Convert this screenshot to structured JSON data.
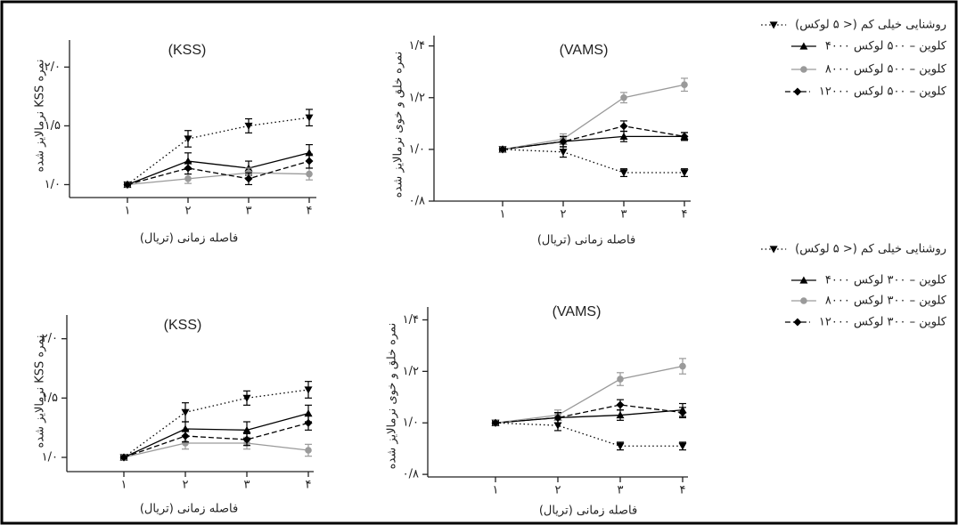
{
  "chart_data": [
    {
      "type": "line",
      "title": "(KSS)",
      "y_label": "نمره KSS نرمالایز شده",
      "x_label": "فاصله زمانی (تریال)",
      "categories": [
        "۱",
        "۲",
        "۳",
        "۴"
      ],
      "ylim": [
        0.89,
        2.23
      ],
      "yticks": [
        {
          "value": 1.0,
          "label": "۱/۰"
        },
        {
          "value": 1.5,
          "label": "۱/۵"
        },
        {
          "value": 2.0,
          "label": "۲/۰"
        }
      ],
      "series": [
        {
          "color": "#000000",
          "dash": "dotted",
          "marker": "triangle-down",
          "values": [
            1.0,
            1.39,
            1.5,
            1.57
          ],
          "errors": [
            0.01,
            0.07,
            0.06,
            0.07
          ]
        },
        {
          "color": "#000000",
          "dash": "solid",
          "marker": "triangle-up",
          "values": [
            1.0,
            1.2,
            1.14,
            1.27
          ],
          "errors": [
            0.01,
            0.07,
            0.06,
            0.07
          ]
        },
        {
          "color": "#9a9a9a",
          "dash": "solid",
          "marker": "circle",
          "values": [
            1.0,
            1.05,
            1.1,
            1.09
          ],
          "errors": [
            0.01,
            0.04,
            0.04,
            0.05
          ]
        },
        {
          "color": "#000000",
          "dash": "dashed",
          "marker": "diamond",
          "values": [
            1.0,
            1.14,
            1.05,
            1.2
          ],
          "errors": [
            0.01,
            0.05,
            0.05,
            0.06
          ]
        }
      ]
    },
    {
      "type": "line",
      "title": "(VAMS)",
      "y_label": "نمره خلق و خوی نرمالایز شده",
      "x_label": "فاصله زمانی (تریال)",
      "categories": [
        "۱",
        "۲",
        "۳",
        "۴"
      ],
      "ylim": [
        0.8,
        1.44
      ],
      "yticks": [
        {
          "value": 0.8,
          "label": "۰/۸"
        },
        {
          "value": 1.0,
          "label": "۱/۰"
        },
        {
          "value": 1.2,
          "label": "۱/۲"
        },
        {
          "value": 1.4,
          "label": "۱/۴"
        }
      ],
      "series": [
        {
          "name": "روشنایی خیلی کم (< ۵ لوکس)",
          "color": "#000000",
          "dash": "dotted",
          "marker": "triangle-down",
          "values": [
            1.0,
            0.99,
            0.91,
            0.91
          ],
          "errors": [
            0.005,
            0.02,
            0.015,
            0.015
          ]
        },
        {
          "name": "۴۰۰۰ کلوین – ۵۰۰ لوکس",
          "color": "#000000",
          "dash": "solid",
          "marker": "triangle-up",
          "values": [
            1.0,
            1.03,
            1.05,
            1.05
          ],
          "errors": [
            0.005,
            0.02,
            0.02,
            0.015
          ]
        },
        {
          "name": "۸۰۰۰ کلوین – ۵۰۰ لوکس",
          "color": "#9a9a9a",
          "dash": "solid",
          "marker": "circle",
          "values": [
            1.0,
            1.04,
            1.2,
            1.25
          ],
          "errors": [
            0.005,
            0.02,
            0.02,
            0.025
          ]
        },
        {
          "name": "۱۲۰۰۰ کلوین – ۵۰۰ لوکس",
          "color": "#000000",
          "dash": "dashed",
          "marker": "diamond",
          "values": [
            1.0,
            1.03,
            1.09,
            1.05
          ],
          "errors": [
            0.005,
            0.02,
            0.02,
            0.015
          ]
        }
      ]
    },
    {
      "type": "line",
      "title": "(KSS)",
      "y_label": "نمره KSS نرمالایز شده",
      "x_label": "فاصله زمانی (تریال)",
      "categories": [
        "۱",
        "۲",
        "۳",
        "۴"
      ],
      "ylim": [
        0.88,
        2.2
      ],
      "yticks": [
        {
          "value": 1.0,
          "label": "۱/۰"
        },
        {
          "value": 1.5,
          "label": "۱/۵"
        },
        {
          "value": 2.0,
          "label": "۲/۰"
        }
      ],
      "series": [
        {
          "color": "#000000",
          "dash": "dotted",
          "marker": "triangle-down",
          "values": [
            1.0,
            1.38,
            1.5,
            1.57
          ],
          "errors": [
            0.01,
            0.08,
            0.06,
            0.07
          ]
        },
        {
          "color": "#000000",
          "dash": "solid",
          "marker": "triangle-up",
          "values": [
            1.0,
            1.24,
            1.23,
            1.37
          ],
          "errors": [
            0.01,
            0.06,
            0.07,
            0.07
          ]
        },
        {
          "color": "#9a9a9a",
          "dash": "solid",
          "marker": "circle",
          "values": [
            1.0,
            1.12,
            1.12,
            1.06
          ],
          "errors": [
            0.01,
            0.05,
            0.05,
            0.05
          ]
        },
        {
          "color": "#000000",
          "dash": "dashed",
          "marker": "diamond",
          "values": [
            1.0,
            1.18,
            1.15,
            1.29
          ],
          "errors": [
            0.01,
            0.05,
            0.05,
            0.06
          ]
        }
      ]
    },
    {
      "type": "line",
      "title": "(VAMS)",
      "y_label": "نمره خلق و خوی نرمالایز شده",
      "x_label": "فاصله زمانی (تریال)",
      "categories": [
        "۱",
        "۲",
        "۳",
        "۴"
      ],
      "ylim": [
        0.79,
        1.45
      ],
      "yticks": [
        {
          "value": 0.8,
          "label": "۰/۸"
        },
        {
          "value": 1.0,
          "label": "۱/۰"
        },
        {
          "value": 1.2,
          "label": "۱/۲"
        },
        {
          "value": 1.4,
          "label": "۱/۴"
        }
      ],
      "series": [
        {
          "name": "روشنایی خیلی کم (< ۵ لوکس)",
          "color": "#000000",
          "dash": "dotted",
          "marker": "triangle-down",
          "values": [
            1.0,
            0.99,
            0.91,
            0.91
          ],
          "errors": [
            0.005,
            0.02,
            0.015,
            0.015
          ]
        },
        {
          "name": "۴۰۰۰ کلوین – ۳۰۰ لوکس",
          "color": "#000000",
          "dash": "solid",
          "marker": "triangle-up",
          "values": [
            1.0,
            1.02,
            1.03,
            1.05
          ],
          "errors": [
            0.005,
            0.02,
            0.02,
            0.025
          ]
        },
        {
          "name": "۸۰۰۰ کلوین – ۳۰۰ لوکس",
          "color": "#9a9a9a",
          "dash": "solid",
          "marker": "circle",
          "values": [
            1.0,
            1.03,
            1.17,
            1.22
          ],
          "errors": [
            0.005,
            0.02,
            0.025,
            0.03
          ]
        },
        {
          "name": "۱۲۰۰۰ کلوین – ۳۰۰ لوکس",
          "color": "#000000",
          "dash": "dashed",
          "marker": "diamond",
          "values": [
            1.0,
            1.02,
            1.07,
            1.04
          ],
          "errors": [
            0.005,
            0.02,
            0.02,
            0.02
          ]
        }
      ]
    }
  ]
}
